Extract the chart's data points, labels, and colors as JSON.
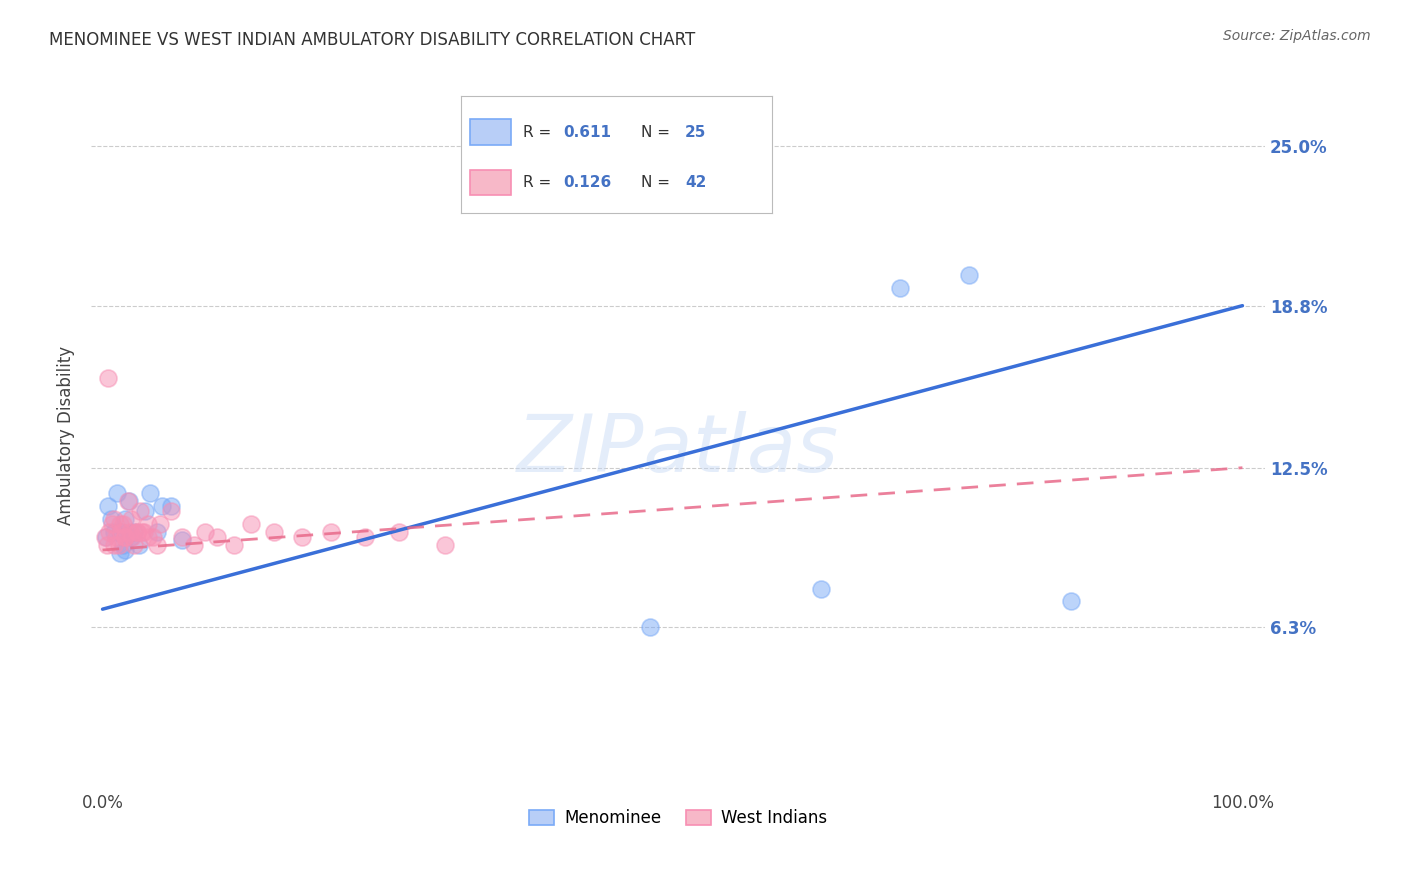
{
  "title": "MENOMINEE VS WEST INDIAN AMBULATORY DISABILITY CORRELATION CHART",
  "source": "Source: ZipAtlas.com",
  "ylabel": "Ambulatory Disability",
  "ytick_labels": [
    "6.3%",
    "12.5%",
    "18.8%",
    "25.0%"
  ],
  "ytick_values": [
    0.063,
    0.125,
    0.188,
    0.25
  ],
  "xlim": [
    -0.01,
    1.02
  ],
  "ylim": [
    0.0,
    0.275
  ],
  "watermark": "ZIPatlas",
  "legend_r1": "R = 0.611",
  "legend_n1": "N = 25",
  "legend_r2": "R = 0.126",
  "legend_n2": "N = 42",
  "menominee_color": "#7aaaf7",
  "west_indian_color": "#f78fb3",
  "trendline_blue_color": "#3a6fd8",
  "trendline_pink_color": "#e86a8a",
  "menominee_x": [
    0.003,
    0.005,
    0.007,
    0.01,
    0.013,
    0.015,
    0.018,
    0.02,
    0.023,
    0.025,
    0.028,
    0.032,
    0.037,
    0.042,
    0.048,
    0.052,
    0.06,
    0.07,
    0.015,
    0.02,
    0.48,
    0.63,
    0.7,
    0.76,
    0.85
  ],
  "menominee_y": [
    0.098,
    0.11,
    0.105,
    0.1,
    0.115,
    0.1,
    0.095,
    0.105,
    0.112,
    0.098,
    0.1,
    0.095,
    0.108,
    0.115,
    0.1,
    0.11,
    0.11,
    0.097,
    0.092,
    0.093,
    0.063,
    0.078,
    0.195,
    0.2,
    0.073
  ],
  "west_indian_x": [
    0.002,
    0.004,
    0.006,
    0.008,
    0.01,
    0.012,
    0.014,
    0.016,
    0.018,
    0.02,
    0.022,
    0.024,
    0.026,
    0.028,
    0.03,
    0.033,
    0.036,
    0.04,
    0.044,
    0.048,
    0.005,
    0.01,
    0.015,
    0.02,
    0.025,
    0.03,
    0.035,
    0.04,
    0.05,
    0.06,
    0.07,
    0.08,
    0.09,
    0.1,
    0.115,
    0.13,
    0.15,
    0.175,
    0.2,
    0.23,
    0.26,
    0.3
  ],
  "west_indian_y": [
    0.098,
    0.095,
    0.1,
    0.103,
    0.105,
    0.098,
    0.095,
    0.1,
    0.103,
    0.098,
    0.112,
    0.1,
    0.098,
    0.095,
    0.1,
    0.108,
    0.1,
    0.103,
    0.098,
    0.095,
    0.16,
    0.095,
    0.103,
    0.098,
    0.105,
    0.1,
    0.1,
    0.098,
    0.103,
    0.108,
    0.098,
    0.095,
    0.1,
    0.098,
    0.095,
    0.103,
    0.1,
    0.098,
    0.1,
    0.098,
    0.1,
    0.095
  ],
  "blue_trendline_x": [
    0.0,
    1.0
  ],
  "blue_trendline_y": [
    0.07,
    0.188
  ],
  "pink_trendline_x": [
    0.0,
    1.0
  ],
  "pink_trendline_y": [
    0.093,
    0.125
  ]
}
